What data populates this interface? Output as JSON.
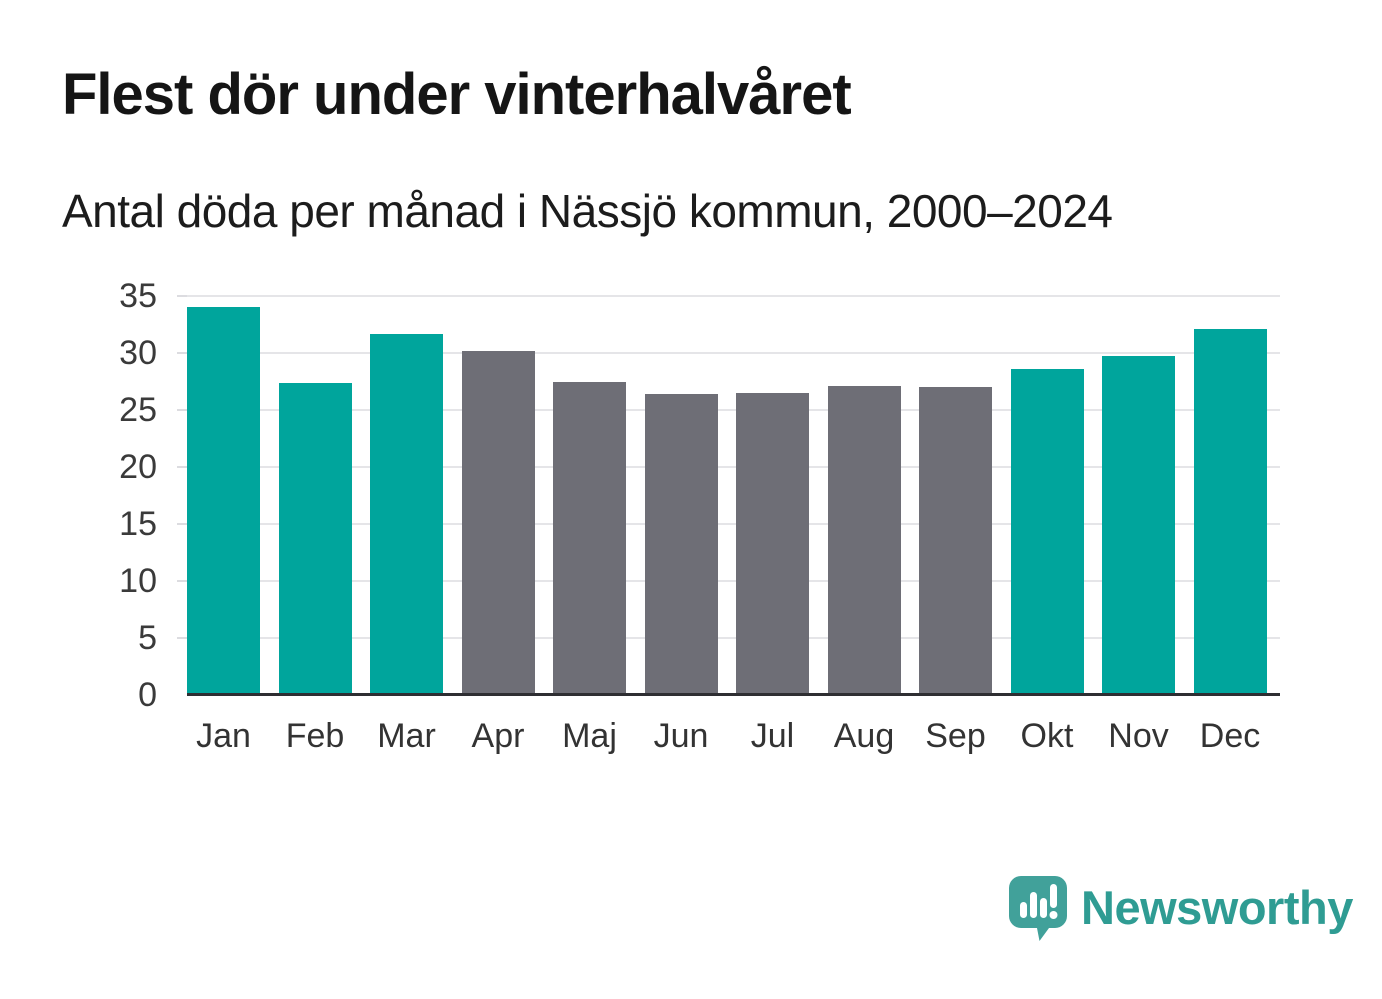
{
  "header": {
    "title": "Flest dör under vinterhalvåret",
    "subtitle": "Antal döda per månad i Nässjö kommun, 2000–2024"
  },
  "chart_data": {
    "type": "bar",
    "title": "Flest dör under vinterhalvåret",
    "subtitle": "Antal döda per månad i Nässjö kommun, 2000–2024",
    "categories": [
      "Jan",
      "Feb",
      "Mar",
      "Apr",
      "Maj",
      "Jun",
      "Jul",
      "Aug",
      "Sep",
      "Okt",
      "Nov",
      "Dec"
    ],
    "values": [
      34.0,
      27.4,
      31.7,
      30.2,
      27.5,
      26.4,
      26.5,
      27.1,
      27.0,
      28.6,
      29.7,
      32.1
    ],
    "bar_groups": [
      "winter",
      "winter",
      "winter",
      "summer",
      "summer",
      "summer",
      "summer",
      "summer",
      "summer",
      "winter",
      "winter",
      "winter"
    ],
    "bar_palette": {
      "winter": "#00a59c",
      "summer": "#6e6e76"
    },
    "ylim": [
      0,
      35
    ],
    "yticks": [
      0,
      5,
      10,
      15,
      20,
      25,
      30,
      35
    ],
    "xlabel": "",
    "ylabel": "",
    "grid": "horizontal-only",
    "legend": "none"
  },
  "branding": {
    "wordmark": "Newsworthy",
    "logo_icon": "bar-chart-speech-bubble-icon",
    "bubble_color": "#41a19a",
    "wordmark_color": "#2f9c93"
  },
  "colors": {
    "background": "#ffffff",
    "title_text": "#151515",
    "subtitle_text": "#1c1c1c",
    "axis_line": "#2e2e32",
    "gridline": "#e5e5e8",
    "tick_text": "#3a3a3a"
  }
}
